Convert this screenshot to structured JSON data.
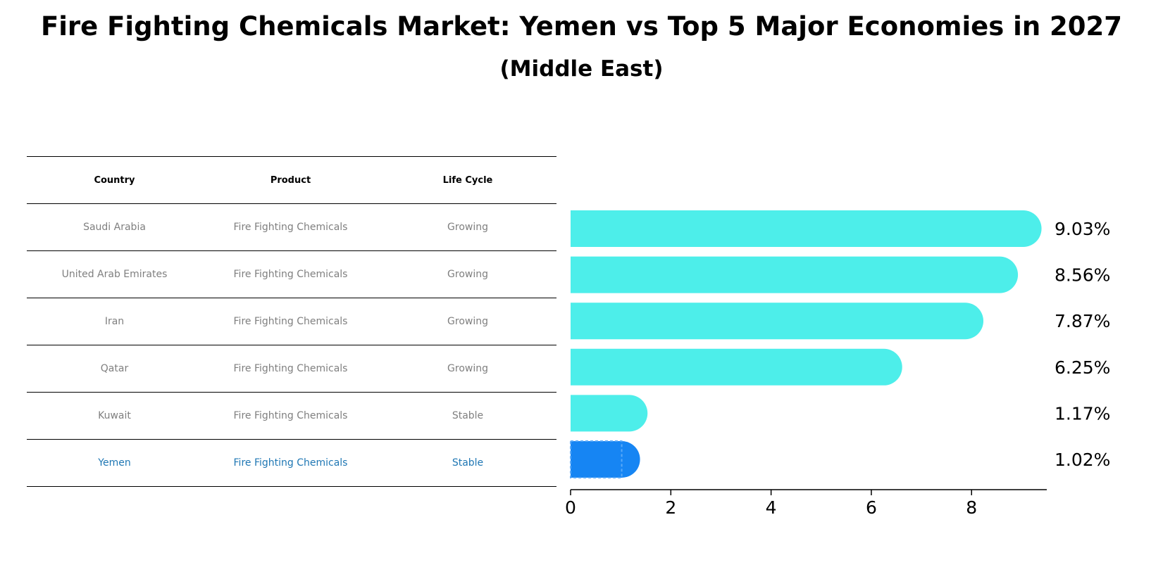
{
  "title": "Fire Fighting Chemicals Market: Yemen vs Top 5 Major Economies in 2027",
  "subtitle": "(Middle East)",
  "table": {
    "headers": [
      "Country",
      "Product",
      "Life Cycle"
    ],
    "rows": [
      {
        "country": "Saudi Arabia",
        "product": "Fire Fighting Chemicals",
        "life_cycle": "Growing"
      },
      {
        "country": "United Arab Emirates",
        "product": "Fire Fighting Chemicals",
        "life_cycle": "Growing"
      },
      {
        "country": "Iran",
        "product": "Fire Fighting Chemicals",
        "life_cycle": "Growing"
      },
      {
        "country": "Qatar",
        "product": "Fire Fighting Chemicals",
        "life_cycle": "Growing"
      },
      {
        "country": "Kuwait",
        "product": "Fire Fighting Chemicals",
        "life_cycle": "Stable"
      },
      {
        "country": "Yemen",
        "product": "Fire Fighting Chemicals",
        "life_cycle": "Stable"
      }
    ],
    "highlight_color": "#1f77b4",
    "text_color": "#7f7f7f"
  },
  "chart_data": {
    "type": "bar",
    "orientation": "horizontal",
    "categories": [
      "Saudi Arabia",
      "United Arab Emirates",
      "Iran",
      "Qatar",
      "Kuwait",
      "Yemen"
    ],
    "values": [
      9.03,
      8.56,
      7.87,
      6.25,
      1.17,
      1.02
    ],
    "value_labels": [
      "9.03%",
      "8.56%",
      "7.87%",
      "6.25%",
      "1.17%",
      "1.02%"
    ],
    "highlight": "Yemen",
    "xlim": [
      0,
      9.5
    ],
    "xticks": [
      0,
      2,
      4,
      6,
      8
    ],
    "xlabel": "",
    "ylabel": "",
    "grid": false,
    "colors": {
      "default": "#4deeea",
      "highlight": "#1685f3"
    }
  }
}
